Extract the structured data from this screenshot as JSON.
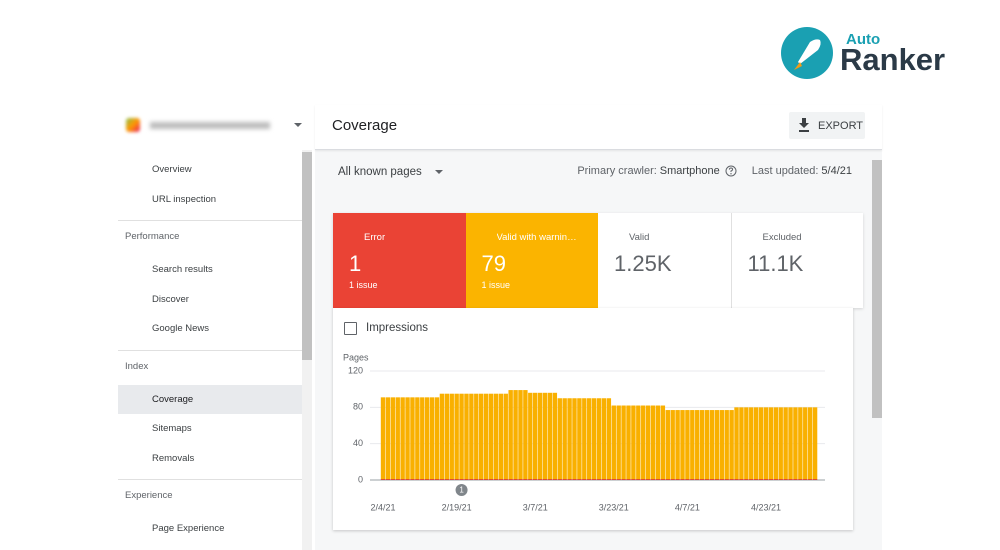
{
  "logo": {
    "top": "Auto",
    "main": "Ranker"
  },
  "sidebar": {
    "groups": [
      {
        "items": [
          {
            "label": "Overview"
          },
          {
            "label": "URL inspection"
          }
        ]
      },
      {
        "title": "Performance",
        "items": [
          {
            "label": "Search results"
          },
          {
            "label": "Discover"
          },
          {
            "label": "Google News"
          }
        ]
      },
      {
        "title": "Index",
        "items": [
          {
            "label": "Coverage",
            "active": true
          },
          {
            "label": "Sitemaps"
          },
          {
            "label": "Removals"
          }
        ]
      },
      {
        "title": "Experience",
        "items": [
          {
            "label": "Page Experience"
          }
        ]
      }
    ]
  },
  "header": {
    "title": "Coverage",
    "button": "EXPORT"
  },
  "filter": {
    "dropdown": "All known pages",
    "crawler_label": "Primary crawler:",
    "crawler": "Smartphone",
    "updated_label": "Last updated:",
    "updated": "5/4/21"
  },
  "cards": [
    {
      "label": "Error",
      "value": "1",
      "detail": "1 issue",
      "color": "#ea4335",
      "checked": true
    },
    {
      "label": "Valid with warnin…",
      "value": "79",
      "detail": "1 issue",
      "color": "#fbb400",
      "checked": true
    },
    {
      "label": "Valid",
      "value": "1.25K",
      "color": "#ffffff",
      "checked": false
    },
    {
      "label": "Excluded",
      "value": "11.1K",
      "color": "#ffffff",
      "checked": false
    }
  ],
  "impressions": "Impressions",
  "chart_data": {
    "type": "bar",
    "ylabel": "Pages",
    "annotation": "1",
    "stacked": true,
    "grid": true,
    "ylim": [
      0,
      120
    ],
    "yticks": [
      0,
      40,
      80,
      120
    ],
    "categories": [
      "2/4/21",
      null,
      null,
      null,
      null,
      null,
      null,
      null,
      null,
      null,
      null,
      null,
      null,
      null,
      null,
      "2/19/21",
      null,
      null,
      null,
      null,
      null,
      null,
      null,
      null,
      null,
      null,
      null,
      null,
      null,
      null,
      null,
      "3/7/21",
      null,
      null,
      null,
      null,
      null,
      null,
      null,
      null,
      null,
      null,
      null,
      null,
      null,
      null,
      null,
      "3/23/21",
      null,
      null,
      null,
      null,
      null,
      null,
      null,
      null,
      null,
      null,
      null,
      null,
      null,
      null,
      "4/7/21",
      null,
      null,
      null,
      null,
      null,
      null,
      null,
      null,
      null,
      null,
      null,
      null,
      null,
      null,
      null,
      "4/23/21",
      null,
      null,
      null,
      null,
      null,
      null,
      null,
      null,
      null,
      null
    ],
    "series": [
      {
        "color": "#d93025",
        "values": [
          1,
          1,
          1,
          1,
          1,
          1,
          1,
          1,
          1,
          1,
          1,
          1,
          1,
          1,
          1,
          1,
          1,
          1,
          1,
          1,
          1,
          1,
          1,
          1,
          1,
          1,
          1,
          1,
          1,
          1,
          1,
          1,
          1,
          1,
          1,
          1,
          1,
          1,
          1,
          1,
          1,
          1,
          1,
          1,
          1,
          1,
          1,
          1,
          1,
          1,
          1,
          1,
          1,
          1,
          1,
          1,
          1,
          1,
          1,
          1,
          1,
          1,
          1,
          1,
          1,
          1,
          1,
          1,
          1,
          1,
          1,
          1,
          1,
          1,
          1,
          1,
          1,
          1,
          1,
          1,
          1,
          1,
          1,
          1,
          1,
          1,
          1,
          1,
          1
        ]
      },
      {
        "color": "#f9b000",
        "values": [
          90,
          90,
          90,
          90,
          90,
          90,
          90,
          90,
          90,
          90,
          90,
          90,
          94,
          94,
          94,
          94,
          94,
          94,
          94,
          94,
          94,
          94,
          94,
          94,
          94,
          94,
          98,
          98,
          98,
          98,
          95,
          95,
          95,
          95,
          95,
          95,
          89,
          89,
          89,
          89,
          89,
          89,
          89,
          89,
          89,
          89,
          89,
          81,
          81,
          81,
          81,
          81,
          81,
          81,
          81,
          81,
          81,
          81,
          76,
          76,
          76,
          76,
          76,
          76,
          76,
          76,
          76,
          76,
          76,
          76,
          76,
          76,
          79,
          79,
          79,
          79,
          79,
          79,
          79,
          79,
          79,
          79,
          79,
          79,
          79,
          79,
          79,
          79,
          79
        ]
      }
    ]
  }
}
